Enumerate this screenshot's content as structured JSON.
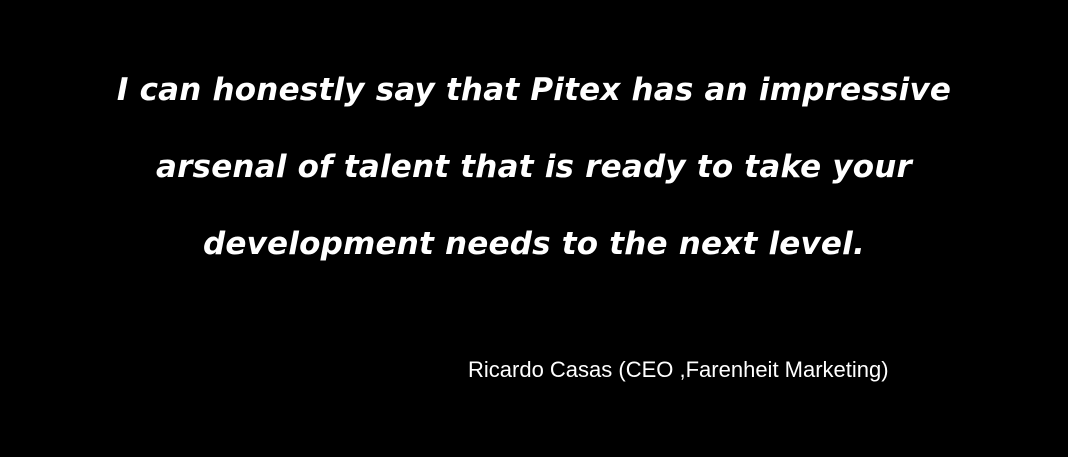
{
  "quote": {
    "lines": [
      "I can honestly say that Pitex has an impressive",
      "arsenal of talent that is ready to take your",
      "development needs to the next level."
    ]
  },
  "attribution": {
    "text": "Ricardo Casas (CEO ,Farenheit Marketing)"
  },
  "colors": {
    "background": "#000000",
    "text": "#ffffff"
  }
}
